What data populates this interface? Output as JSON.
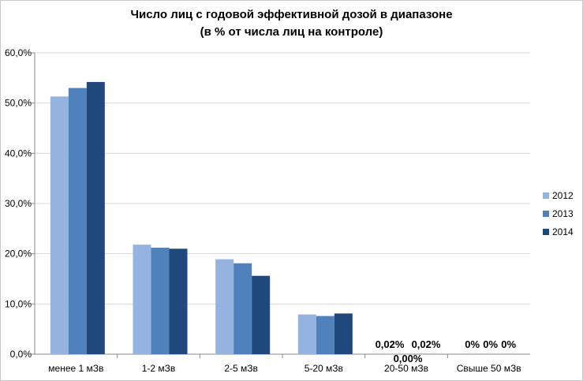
{
  "chart_data": {
    "type": "bar",
    "title_lines": [
      "Число лиц с годовой эффективной дозой в диапазоне",
      "(в % от числа лиц на контроле)"
    ],
    "categories": [
      "менее 1 мЗв",
      "1-2 мЗв",
      "2-5 мЗв",
      "5-20 мЗв",
      "20-50 мЗв",
      "Свыше 50 мЗв"
    ],
    "series": [
      {
        "name": "2012",
        "color": "#95b3e0",
        "values": [
          51.3,
          21.8,
          18.9,
          7.9,
          0.02,
          0.0
        ]
      },
      {
        "name": "2013",
        "color": "#4f81bd",
        "values": [
          53.0,
          21.2,
          18.1,
          7.6,
          0.0,
          0.0
        ]
      },
      {
        "name": "2014",
        "color": "#1f497d",
        "values": [
          54.2,
          21.0,
          15.6,
          8.1,
          0.02,
          0.0
        ]
      }
    ],
    "ylim": [
      0,
      60
    ],
    "yticks": [
      "0,0%",
      "10,0%",
      "20,0%",
      "30,0%",
      "40,0%",
      "50,0%",
      "60,0%"
    ],
    "data_labels": [
      {
        "category": 4,
        "series": 0,
        "text": "0,02%"
      },
      {
        "category": 4,
        "series": 1,
        "text": "0,00%"
      },
      {
        "category": 4,
        "series": 2,
        "text": "0,02%"
      },
      {
        "category": 5,
        "series": 0,
        "text": "0%"
      },
      {
        "category": 5,
        "series": 1,
        "text": "0%"
      },
      {
        "category": 5,
        "series": 2,
        "text": "0%"
      }
    ],
    "grid": true,
    "legend_position": "right"
  }
}
